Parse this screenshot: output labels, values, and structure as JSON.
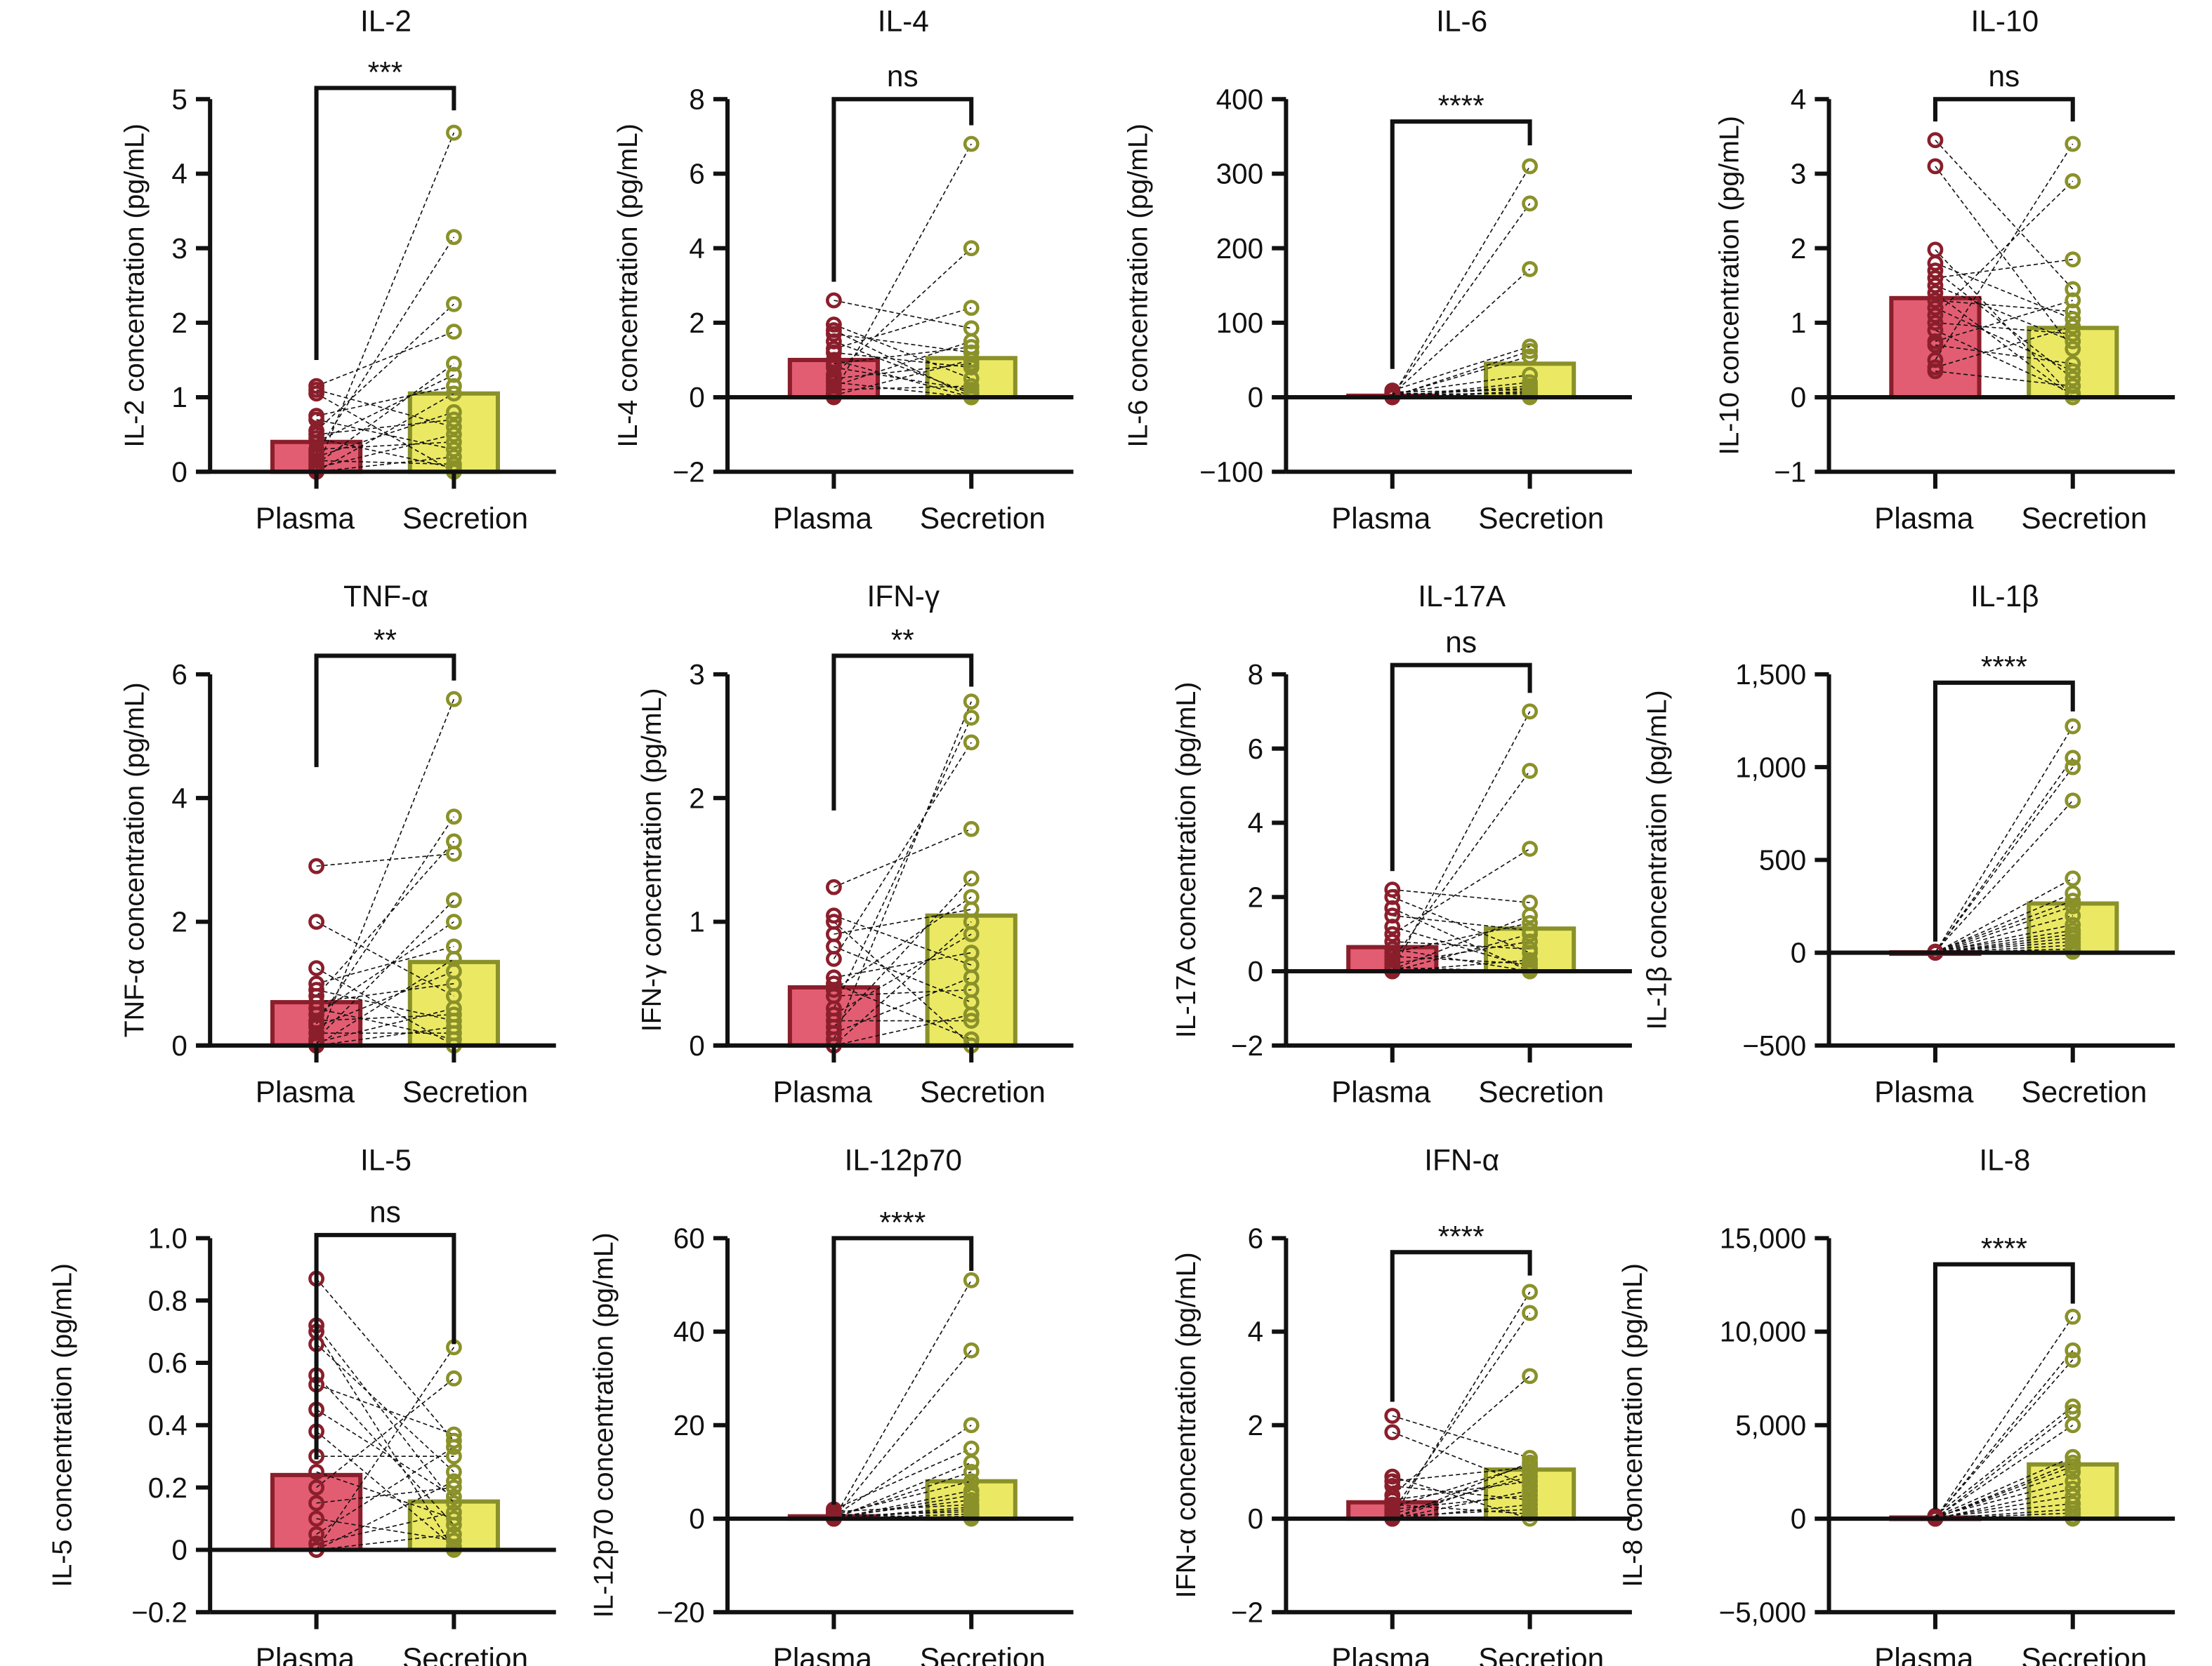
{
  "colors": {
    "plasma_fill": "#e35d72",
    "plasma_stroke": "#8b1e2b",
    "secretion_fill": "#ebe964",
    "secretion_stroke": "#8a9129",
    "axis": "#111111"
  },
  "chart_data": [
    {
      "type": "bar",
      "title": "IL-2",
      "ylabel": "IL-2 concentration (pg/mL)",
      "categories": [
        "Plasma",
        "Secretion"
      ],
      "ylim": [
        0,
        5
      ],
      "yticks": [
        0,
        1,
        2,
        3,
        4,
        5
      ],
      "ytick_labels": [
        "0",
        "1",
        "2",
        "3",
        "4",
        "5"
      ],
      "bars": [
        0.4,
        1.05
      ],
      "significance": "***",
      "bracket": {
        "y": 5.15,
        "left": 1.5,
        "right": 4.85
      },
      "plasma": [
        1.15,
        1.1,
        1.05,
        0.75,
        0.7,
        0.55,
        0.5,
        0.45,
        0.4,
        0.3,
        0.25,
        0.2,
        0.15,
        0.1,
        0.05,
        0.02,
        0,
        0
      ],
      "secretion": [
        4.55,
        3.15,
        2.25,
        1.88,
        1.45,
        1.3,
        1.15,
        1.05,
        0.8,
        0.7,
        0.6,
        0.5,
        0.4,
        0.3,
        0.2,
        0.1,
        0.05,
        0
      ]
    },
    {
      "type": "bar",
      "title": "IL-4",
      "ylabel": "IL-4 concentration (pg/mL)",
      "categories": [
        "Plasma",
        "Secretion"
      ],
      "ylim": [
        -2,
        8
      ],
      "yticks": [
        -2,
        0,
        2,
        4,
        6,
        8
      ],
      "ytick_labels": [
        "−2",
        "0",
        "2",
        "4",
        "6",
        "8"
      ],
      "bars": [
        1.0,
        1.05
      ],
      "significance": "ns",
      "bracket": {
        "y": 8.0,
        "left": 3.1,
        "right": 7.3
      },
      "plasma": [
        2.6,
        1.95,
        1.8,
        1.7,
        1.5,
        1.3,
        1.2,
        1.0,
        0.9,
        0.8,
        0.6,
        0.5,
        0.4,
        0.3,
        0.2,
        0.1,
        0.05,
        0
      ],
      "secretion": [
        6.8,
        4.0,
        2.4,
        1.85,
        1.5,
        1.35,
        1.2,
        1.0,
        0.9,
        0.8,
        0.5,
        0.3,
        0.2,
        0.1,
        0.05,
        0,
        0,
        0
      ]
    },
    {
      "type": "bar",
      "title": "IL-6",
      "ylabel": "IL-6 concentration (pg/mL)",
      "categories": [
        "Plasma",
        "Secretion"
      ],
      "ylim": [
        -100,
        400
      ],
      "yticks": [
        -100,
        0,
        100,
        200,
        300,
        400
      ],
      "ytick_labels": [
        "−100",
        "0",
        "100",
        "200",
        "300",
        "400"
      ],
      "bars": [
        2,
        45
      ],
      "significance": "****",
      "bracket": {
        "y": 370,
        "left": 38,
        "right": 338
      },
      "plasma": [
        9,
        7,
        6,
        5,
        4,
        4,
        3,
        3,
        2,
        2,
        2,
        1,
        1,
        1,
        0.5,
        0.5,
        0,
        0
      ],
      "secretion": [
        310,
        260,
        172,
        68,
        62,
        55,
        30,
        20,
        15,
        12,
        10,
        8,
        6,
        5,
        3,
        2,
        1,
        0
      ]
    },
    {
      "type": "bar",
      "title": "IL-10",
      "ylabel": "IL-10 concentration (pg/mL)",
      "categories": [
        "Plasma",
        "Secretion"
      ],
      "ylim": [
        -1,
        4
      ],
      "yticks": [
        -1,
        0,
        1,
        2,
        3,
        4
      ],
      "ytick_labels": [
        "−1",
        "0",
        "1",
        "2",
        "3",
        "4"
      ],
      "bars": [
        1.33,
        0.93
      ],
      "significance": "ns",
      "bracket": {
        "y": 4.0,
        "left": 3.7,
        "right": 3.7
      },
      "plasma": [
        3.45,
        3.1,
        1.98,
        1.8,
        1.7,
        1.6,
        1.5,
        1.4,
        1.3,
        1.2,
        1.1,
        1.0,
        0.9,
        0.75,
        0.7,
        0.5,
        0.4,
        0.35
      ],
      "secretion": [
        3.4,
        2.9,
        1.85,
        1.45,
        1.3,
        1.15,
        1.05,
        0.95,
        0.85,
        0.75,
        0.65,
        0.45,
        0.35,
        0.25,
        0.15,
        0.05,
        0,
        0
      ]
    },
    {
      "type": "bar",
      "title": "TNF-α",
      "ylabel": "TNF-α concentration (pg/mL)",
      "categories": [
        "Plasma",
        "Secretion"
      ],
      "ylim": [
        0,
        6
      ],
      "yticks": [
        0,
        2,
        4,
        6
      ],
      "ytick_labels": [
        "0",
        "2",
        "4",
        "6"
      ],
      "bars": [
        0.7,
        1.35
      ],
      "significance": "**",
      "bracket": {
        "y": 6.3,
        "left": 4.5,
        "right": 5.9
      },
      "plasma": [
        2.9,
        2.0,
        1.25,
        1.0,
        0.9,
        0.8,
        0.7,
        0.6,
        0.5,
        0.4,
        0.35,
        0.3,
        0.2,
        0.1,
        0.05,
        0,
        0,
        0
      ],
      "secretion": [
        5.6,
        3.7,
        3.3,
        3.1,
        2.35,
        2.0,
        1.6,
        1.4,
        1.2,
        1.0,
        0.8,
        0.6,
        0.5,
        0.4,
        0.3,
        0.2,
        0.1,
        0
      ]
    },
    {
      "type": "bar",
      "title": "IFN-γ",
      "ylabel": "IFN-γ concentration (pg/mL)",
      "categories": [
        "Plasma",
        "Secretion"
      ],
      "ylim": [
        0,
        3
      ],
      "yticks": [
        0,
        1,
        2,
        3
      ],
      "ytick_labels": [
        "0",
        "1",
        "2",
        "3"
      ],
      "bars": [
        0.47,
        1.05
      ],
      "significance": "**",
      "bracket": {
        "y": 3.15,
        "left": 1.9,
        "right": 2.9
      },
      "plasma": [
        1.28,
        1.05,
        1.0,
        0.9,
        0.8,
        0.7,
        0.55,
        0.5,
        0.45,
        0.4,
        0.3,
        0.25,
        0.2,
        0.15,
        0.1,
        0.05,
        0,
        0
      ],
      "secretion": [
        2.78,
        2.65,
        2.45,
        1.75,
        1.35,
        1.2,
        1.1,
        1.0,
        0.9,
        0.75,
        0.65,
        0.55,
        0.45,
        0.35,
        0.25,
        0.2,
        0.05,
        0
      ]
    },
    {
      "type": "bar",
      "title": "IL-17A",
      "ylabel": "IL-17A concentration (pg/mL)",
      "categories": [
        "Plasma",
        "Secretion"
      ],
      "ylim": [
        -2,
        8
      ],
      "yticks": [
        -2,
        0,
        2,
        4,
        6,
        8
      ],
      "ytick_labels": [
        "−2",
        "0",
        "2",
        "4",
        "6",
        "8"
      ],
      "bars": [
        0.65,
        1.15
      ],
      "significance": "ns",
      "bracket": {
        "y": 8.25,
        "left": 2.7,
        "right": 7.5
      },
      "plasma": [
        2.2,
        2.0,
        1.7,
        1.5,
        1.2,
        1.0,
        0.8,
        0.6,
        0.5,
        0.4,
        0.3,
        0.2,
        0.1,
        0.05,
        0,
        0,
        0,
        0
      ],
      "secretion": [
        7.0,
        5.4,
        3.3,
        1.85,
        1.5,
        1.3,
        1.1,
        1.0,
        0.8,
        0.6,
        0.5,
        0.3,
        0.2,
        0.1,
        0.05,
        0,
        0,
        0
      ]
    },
    {
      "type": "bar",
      "title": "IL-1β",
      "ylabel": "IL-1β concentration (pg/mL)",
      "categories": [
        "Plasma",
        "Secretion"
      ],
      "ylim": [
        -500,
        1500
      ],
      "yticks": [
        -500,
        0,
        500,
        1000,
        1500
      ],
      "ytick_labels": [
        "−500",
        "0",
        "500",
        "1,000",
        "1,500"
      ],
      "bars": [
        2,
        265
      ],
      "significance": "****",
      "bracket": {
        "y": 1455,
        "left": 60,
        "right": 1300
      },
      "plasma": [
        6,
        5,
        4,
        4,
        3,
        3,
        2,
        2,
        2,
        1,
        1,
        1,
        1,
        0,
        0,
        0,
        0,
        0
      ],
      "secretion": [
        1220,
        1050,
        1000,
        820,
        400,
        320,
        280,
        250,
        200,
        150,
        120,
        100,
        80,
        60,
        40,
        20,
        10,
        5
      ]
    },
    {
      "type": "bar",
      "title": "IL-5",
      "ylabel": "IL-5 concentration (pg/mL)",
      "categories": [
        "Plasma",
        "Secretion"
      ],
      "ylim": [
        -0.2,
        1.0
      ],
      "yticks": [
        -0.2,
        0,
        0.2,
        0.4,
        0.6,
        0.8,
        1.0
      ],
      "ytick_labels": [
        "−0.2",
        "0",
        "0.2",
        "0.4",
        "0.6",
        "0.8",
        "1.0"
      ],
      "bars": [
        0.24,
        0.155
      ],
      "significance": "ns",
      "bracket": {
        "y": 1.01,
        "left": 0.29,
        "right": 0.66
      },
      "plasma": [
        0.87,
        0.72,
        0.7,
        0.66,
        0.56,
        0.53,
        0.45,
        0.38,
        0.3,
        0.25,
        0.2,
        0.15,
        0.1,
        0.05,
        0.02,
        0,
        0,
        0
      ],
      "secretion": [
        0.65,
        0.55,
        0.37,
        0.35,
        0.33,
        0.3,
        0.25,
        0.22,
        0.2,
        0.17,
        0.15,
        0.12,
        0.1,
        0.08,
        0.05,
        0.03,
        0.01,
        0
      ]
    },
    {
      "type": "bar",
      "title": "IL-12p70",
      "ylabel": "IL-12p70 concentration (pg/mL)",
      "categories": [
        "Plasma",
        "Secretion"
      ],
      "ylim": [
        -20,
        60
      ],
      "yticks": [
        -20,
        0,
        20,
        40,
        60
      ],
      "ytick_labels": [
        "−20",
        "0",
        "20",
        "40",
        "60"
      ],
      "bars": [
        0.5,
        8
      ],
      "significance": "****",
      "bracket": {
        "y": 60,
        "left": 3,
        "right": 53
      },
      "plasma": [
        2,
        1.5,
        1,
        0.8,
        0.6,
        0.5,
        0.4,
        0.3,
        0.2,
        0.1,
        0.1,
        0,
        0,
        0,
        0,
        0,
        0,
        0
      ],
      "secretion": [
        51,
        36,
        20,
        15,
        12,
        10,
        8,
        6,
        5,
        4,
        3,
        2.5,
        2,
        1.5,
        1,
        0.5,
        0.2,
        0
      ]
    },
    {
      "type": "bar",
      "title": "IFN-α",
      "ylabel": "IFN-α concentration (pg/mL)",
      "categories": [
        "Plasma",
        "Secretion"
      ],
      "ylim": [
        -2,
        6
      ],
      "yticks": [
        -2,
        0,
        2,
        4,
        6
      ],
      "ytick_labels": [
        "−2",
        "0",
        "2",
        "4",
        "6"
      ],
      "bars": [
        0.35,
        1.05
      ],
      "significance": "****",
      "bracket": {
        "y": 5.7,
        "left": 2.5,
        "right": 5.2
      },
      "plasma": [
        2.2,
        1.85,
        0.9,
        0.8,
        0.7,
        0.5,
        0.4,
        0.3,
        0.25,
        0.2,
        0.15,
        0.1,
        0.05,
        0,
        0,
        0,
        0,
        0
      ],
      "secretion": [
        4.85,
        4.4,
        3.05,
        1.3,
        1.2,
        1.15,
        1.1,
        1.0,
        0.9,
        0.8,
        0.7,
        0.6,
        0.5,
        0.4,
        0.3,
        0.2,
        0.1,
        0
      ]
    },
    {
      "type": "bar",
      "title": "IL-8",
      "ylabel": "IL-8 concentration (pg/mL)",
      "categories": [
        "Plasma",
        "Secretion"
      ],
      "ylim": [
        -5000,
        15000
      ],
      "yticks": [
        -5000,
        0,
        5000,
        10000,
        15000
      ],
      "ytick_labels": [
        "−5,000",
        "0",
        "5,000",
        "10,000",
        "15,000"
      ],
      "bars": [
        60,
        2900
      ],
      "significance": "****",
      "bracket": {
        "y": 13600,
        "left": 500,
        "right": 11500
      },
      "plasma": [
        150,
        120,
        100,
        90,
        80,
        70,
        60,
        50,
        50,
        40,
        30,
        20,
        10,
        5,
        0,
        0,
        0,
        0
      ],
      "secretion": [
        10800,
        9000,
        8500,
        6000,
        5700,
        5000,
        3300,
        3000,
        2800,
        2500,
        2000,
        1600,
        1200,
        800,
        500,
        300,
        100,
        0
      ]
    }
  ]
}
